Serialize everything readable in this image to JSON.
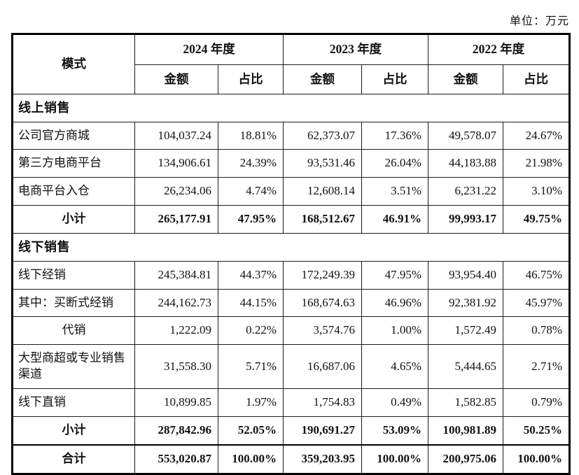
{
  "unit_label": "单位：万元",
  "table": {
    "header": {
      "mode": "模式",
      "amount": "金额",
      "ratio": "占比",
      "years": [
        "2024 年度",
        "2023 年度",
        "2022 年度"
      ]
    },
    "rows": [
      {
        "type": "section",
        "label": "线上销售",
        "values": []
      },
      {
        "type": "data",
        "label": "公司官方商城",
        "values": [
          "104,037.24",
          "18.81%",
          "62,373.07",
          "17.36%",
          "49,578.07",
          "24.67%"
        ]
      },
      {
        "type": "data",
        "label": "第三方电商平台",
        "values": [
          "134,906.61",
          "24.39%",
          "93,531.46",
          "26.04%",
          "44,183.88",
          "21.98%"
        ]
      },
      {
        "type": "data",
        "label": "电商平台入仓",
        "values": [
          "26,234.06",
          "4.74%",
          "12,608.14",
          "3.51%",
          "6,231.22",
          "3.10%"
        ]
      },
      {
        "type": "subtotal",
        "label": "小计",
        "values": [
          "265,177.91",
          "47.95%",
          "168,512.67",
          "46.91%",
          "99,993.17",
          "49.75%"
        ]
      },
      {
        "type": "section",
        "label": "线下销售",
        "values": []
      },
      {
        "type": "data",
        "label": "线下经销",
        "values": [
          "245,384.81",
          "44.37%",
          "172,249.39",
          "47.95%",
          "93,954.40",
          "46.75%"
        ]
      },
      {
        "type": "data",
        "label": "其中：买断式经销",
        "values": [
          "244,162.73",
          "44.15%",
          "168,674.63",
          "46.96%",
          "92,381.92",
          "45.97%"
        ]
      },
      {
        "type": "data_center",
        "label": "代销",
        "values": [
          "1,222.09",
          "0.22%",
          "3,574.76",
          "1.00%",
          "1,572.49",
          "0.78%"
        ]
      },
      {
        "type": "data",
        "label": "大型商超或专业销售渠道",
        "values": [
          "31,558.30",
          "5.71%",
          "16,687.06",
          "4.65%",
          "5,444.65",
          "2.71%"
        ]
      },
      {
        "type": "data",
        "label": "线下直销",
        "values": [
          "10,899.85",
          "1.97%",
          "1,754.83",
          "0.49%",
          "1,582.85",
          "0.79%"
        ]
      },
      {
        "type": "subtotal",
        "label": "小计",
        "values": [
          "287,842.96",
          "52.05%",
          "190,691.27",
          "53.09%",
          "100,981.89",
          "50.25%"
        ]
      },
      {
        "type": "total",
        "label": "合计",
        "values": [
          "553,020.87",
          "100.00%",
          "359,203.95",
          "100.00%",
          "200,975.06",
          "100.00%"
        ]
      }
    ]
  }
}
